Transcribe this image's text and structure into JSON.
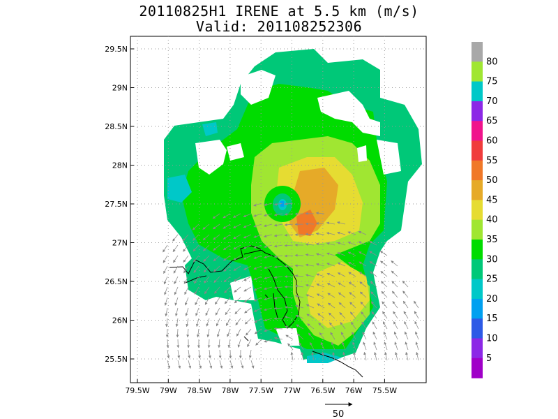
{
  "title_line1": "20110825H1 IRENE at 5.5 km (m/s)",
  "title_line2": "Valid: 201108252306",
  "lat_labels": [
    "29.5N",
    "29N",
    "28.5N",
    "28N",
    "27.5N",
    "27N",
    "26.5N",
    "26N",
    "25.5N"
  ],
  "lon_labels": [
    "79.5W",
    "79W",
    "78.5W",
    "78W",
    "77.5W",
    "77W",
    "76.5W",
    "76W",
    "75.5W"
  ],
  "colorbar": {
    "labels": [
      "80",
      "75",
      "70",
      "65",
      "60",
      "55",
      "50",
      "45",
      "40",
      "35",
      "30",
      "25",
      "20",
      "15",
      "10",
      "5"
    ],
    "colors": [
      "#a8a8a8",
      "#a0e632",
      "#00c8c8",
      "#8c28e6",
      "#f0148c",
      "#f03c3c",
      "#f07828",
      "#e6aa28",
      "#e6dc32",
      "#a0e632",
      "#00dc00",
      "#00c878",
      "#00c8c8",
      "#00a0f0",
      "#2d5ae6",
      "#8c28e6",
      "#a000c8"
    ]
  },
  "vector_scale_label": "50",
  "storm_center": {
    "lat": 27.5,
    "lon": -77.3
  }
}
